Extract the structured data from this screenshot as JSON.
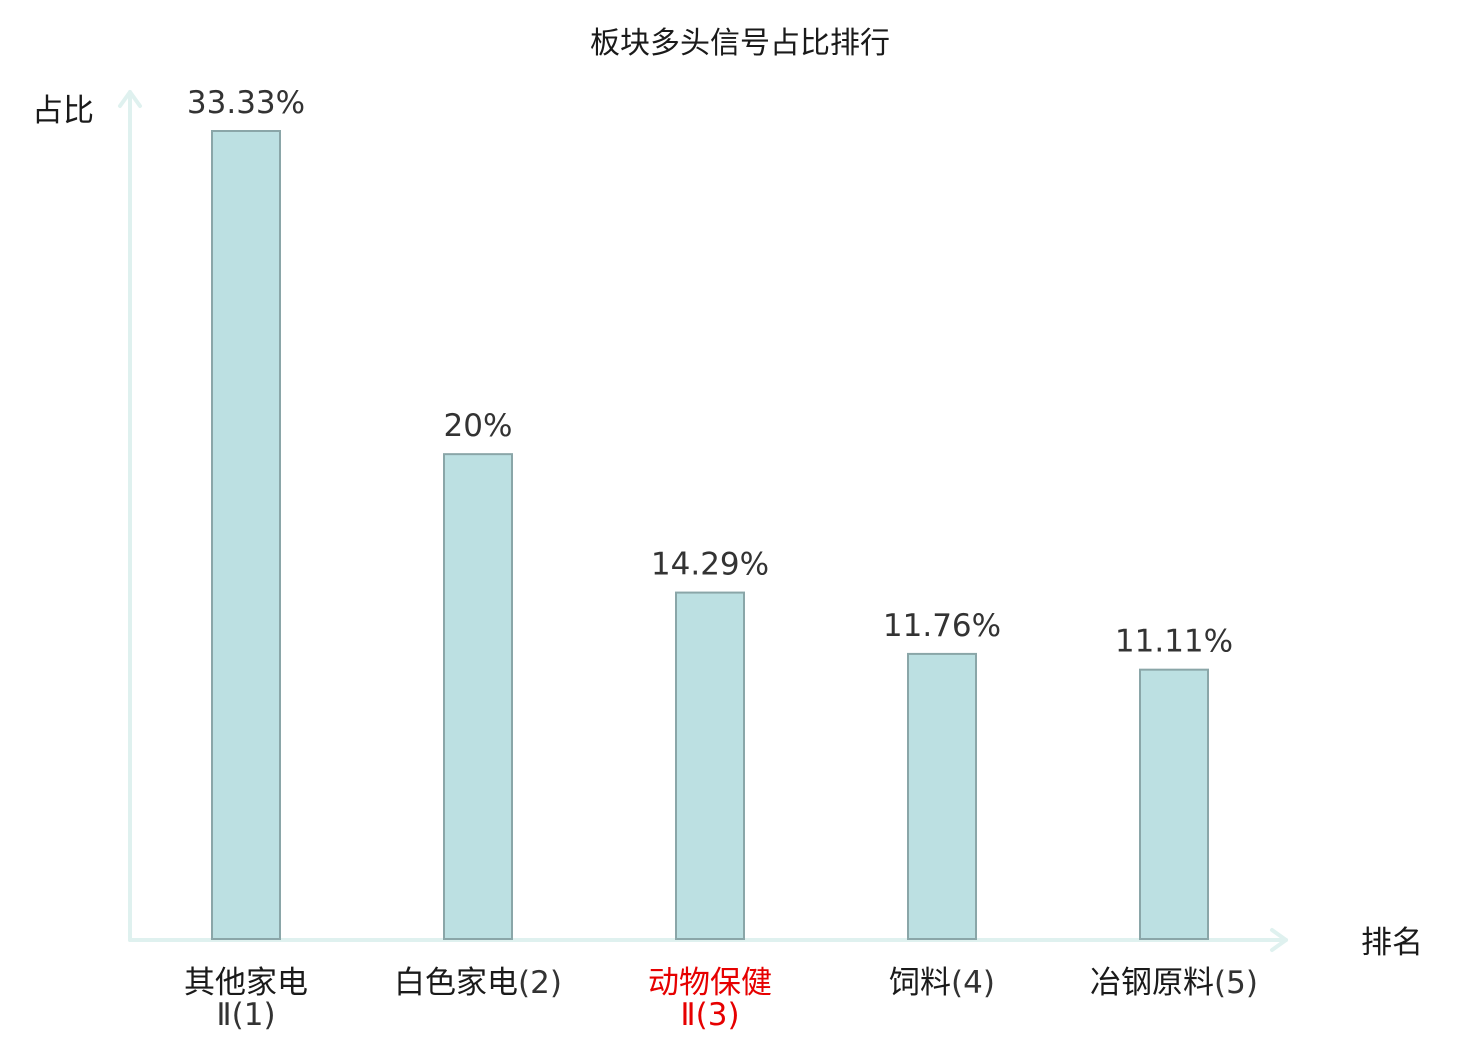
{
  "chart_data": {
    "type": "bar",
    "title": "板块多头信号占比排行",
    "ylabel": "占比",
    "xlabel": "排名",
    "ylim": [
      0,
      33.33
    ],
    "grid": false,
    "categories": [
      {
        "name": "其他家电",
        "rank": "Ⅱ(1)",
        "highlight": false
      },
      {
        "name": "白色家电",
        "rank": "(2)",
        "highlight": false
      },
      {
        "name": "动物保健",
        "rank": "Ⅱ(3)",
        "highlight": true
      },
      {
        "name": "饲料",
        "rank": "(4)",
        "highlight": false
      },
      {
        "name": "冶钢原料",
        "rank": "(5)",
        "highlight": false
      }
    ],
    "values": [
      33.33,
      20,
      14.29,
      11.76,
      11.11
    ],
    "value_labels": [
      "33.33%",
      "20%",
      "14.29%",
      "11.76%",
      "11.11%"
    ]
  },
  "colors": {
    "bar_fill": "#bce0e2",
    "bar_stroke": "#8aa6a8",
    "axis": "#dff1ef",
    "text": "#1a1a1a",
    "rank_text": "#333333",
    "highlight": "#e60000"
  }
}
